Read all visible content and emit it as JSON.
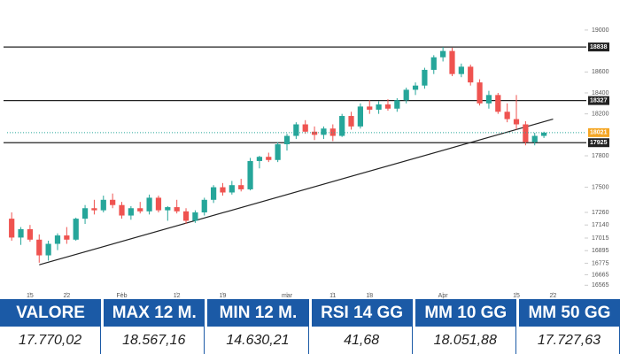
{
  "chart_data": {
    "type": "candlestick",
    "open": [
      17200,
      17020,
      17100,
      17000,
      16850,
      16960,
      17040,
      17000,
      17200,
      17300,
      17280,
      17380,
      17330,
      17230,
      17300,
      17270,
      17400,
      17280,
      17310,
      17270,
      17180,
      17260,
      17380,
      17500,
      17450,
      17520,
      17480,
      17750,
      17790,
      17760,
      17910,
      17990,
      18100,
      18030,
      18000,
      18060,
      17990,
      18180,
      18080,
      18270,
      18240,
      18290,
      18250,
      18330,
      18430,
      18470,
      18620,
      18740,
      18800,
      18580,
      18650,
      18500,
      18300,
      18380,
      18220,
      18150,
      18100,
      17930,
      17990
    ],
    "high": [
      17260,
      17120,
      17140,
      17050,
      16990,
      17060,
      17120,
      17210,
      17330,
      17380,
      17420,
      17440,
      17360,
      17320,
      17360,
      17430,
      17420,
      17320,
      17380,
      17300,
      17280,
      17400,
      17520,
      17540,
      17560,
      17580,
      17780,
      17800,
      17830,
      17930,
      18010,
      18120,
      18140,
      18080,
      18080,
      18100,
      18200,
      18220,
      18300,
      18330,
      18320,
      18340,
      18350,
      18450,
      18500,
      18640,
      18760,
      18838,
      18830,
      18680,
      18670,
      18530,
      18420,
      18400,
      18300,
      18380,
      18130,
      18020,
      18030
    ],
    "low": [
      16990,
      16950,
      16980,
      16780,
      16800,
      16900,
      16960,
      16990,
      17150,
      17240,
      17260,
      17300,
      17200,
      17190,
      17250,
      17240,
      17260,
      17180,
      17250,
      17150,
      17160,
      17230,
      17350,
      17420,
      17430,
      17460,
      17470,
      17680,
      17740,
      17740,
      17850,
      17960,
      18010,
      17950,
      17960,
      17940,
      17980,
      18050,
      18060,
      18200,
      18200,
      18230,
      18220,
      18300,
      18380,
      18440,
      18580,
      18700,
      18560,
      18550,
      18470,
      18280,
      18250,
      18200,
      18120,
      18050,
      17900,
      17900,
      17970
    ],
    "close": [
      17020,
      17100,
      17000,
      16850,
      16960,
      17040,
      17000,
      17200,
      17300,
      17280,
      17380,
      17330,
      17230,
      17300,
      17270,
      17400,
      17280,
      17310,
      17270,
      17180,
      17260,
      17380,
      17500,
      17450,
      17520,
      17480,
      17750,
      17790,
      17760,
      17910,
      17990,
      18100,
      18030,
      18000,
      18060,
      17990,
      18180,
      18080,
      18270,
      18240,
      18290,
      18250,
      18330,
      18430,
      18470,
      18620,
      18740,
      18800,
      18580,
      18650,
      18500,
      18300,
      18380,
      18220,
      18150,
      18100,
      17930,
      17990,
      18021
    ],
    "up_color": "#26a69a",
    "down_color": "#ef5350",
    "xlim": [
      -0.5,
      60.5
    ],
    "xticks": [
      {
        "value": 2,
        "label": "15"
      },
      {
        "value": 6,
        "label": "22"
      },
      {
        "value": 12,
        "label": "Feb"
      },
      {
        "value": 18,
        "label": "12"
      },
      {
        "value": 23,
        "label": "19"
      },
      {
        "value": 30,
        "label": "mar"
      },
      {
        "value": 35,
        "label": "11"
      },
      {
        "value": 39,
        "label": "18"
      },
      {
        "value": 47,
        "label": "Apr"
      },
      {
        "value": 55,
        "label": "15"
      },
      {
        "value": 59,
        "label": "22"
      }
    ],
    "ylim": [
      16500,
      19050
    ],
    "yticks": [
      16565,
      16665,
      16775,
      16895,
      17015,
      17140,
      17260,
      17500,
      17800,
      18200,
      18400,
      18600,
      19000
    ],
    "levels": [
      18838,
      18327,
      17925
    ],
    "last_price": 18021,
    "trendline": {
      "x": [
        3,
        59
      ],
      "y": [
        16760,
        18150
      ]
    }
  },
  "table": {
    "headers": [
      "VALORE",
      "MAX 12 M.",
      "MIN 12 M.",
      "RSI 14 GG",
      "MM 10 GG",
      "MM 50 GG"
    ],
    "values": [
      "17.770,02",
      "18.567,16",
      "14.630,21",
      "41,68",
      "18.051,88",
      "17.727,63"
    ]
  }
}
